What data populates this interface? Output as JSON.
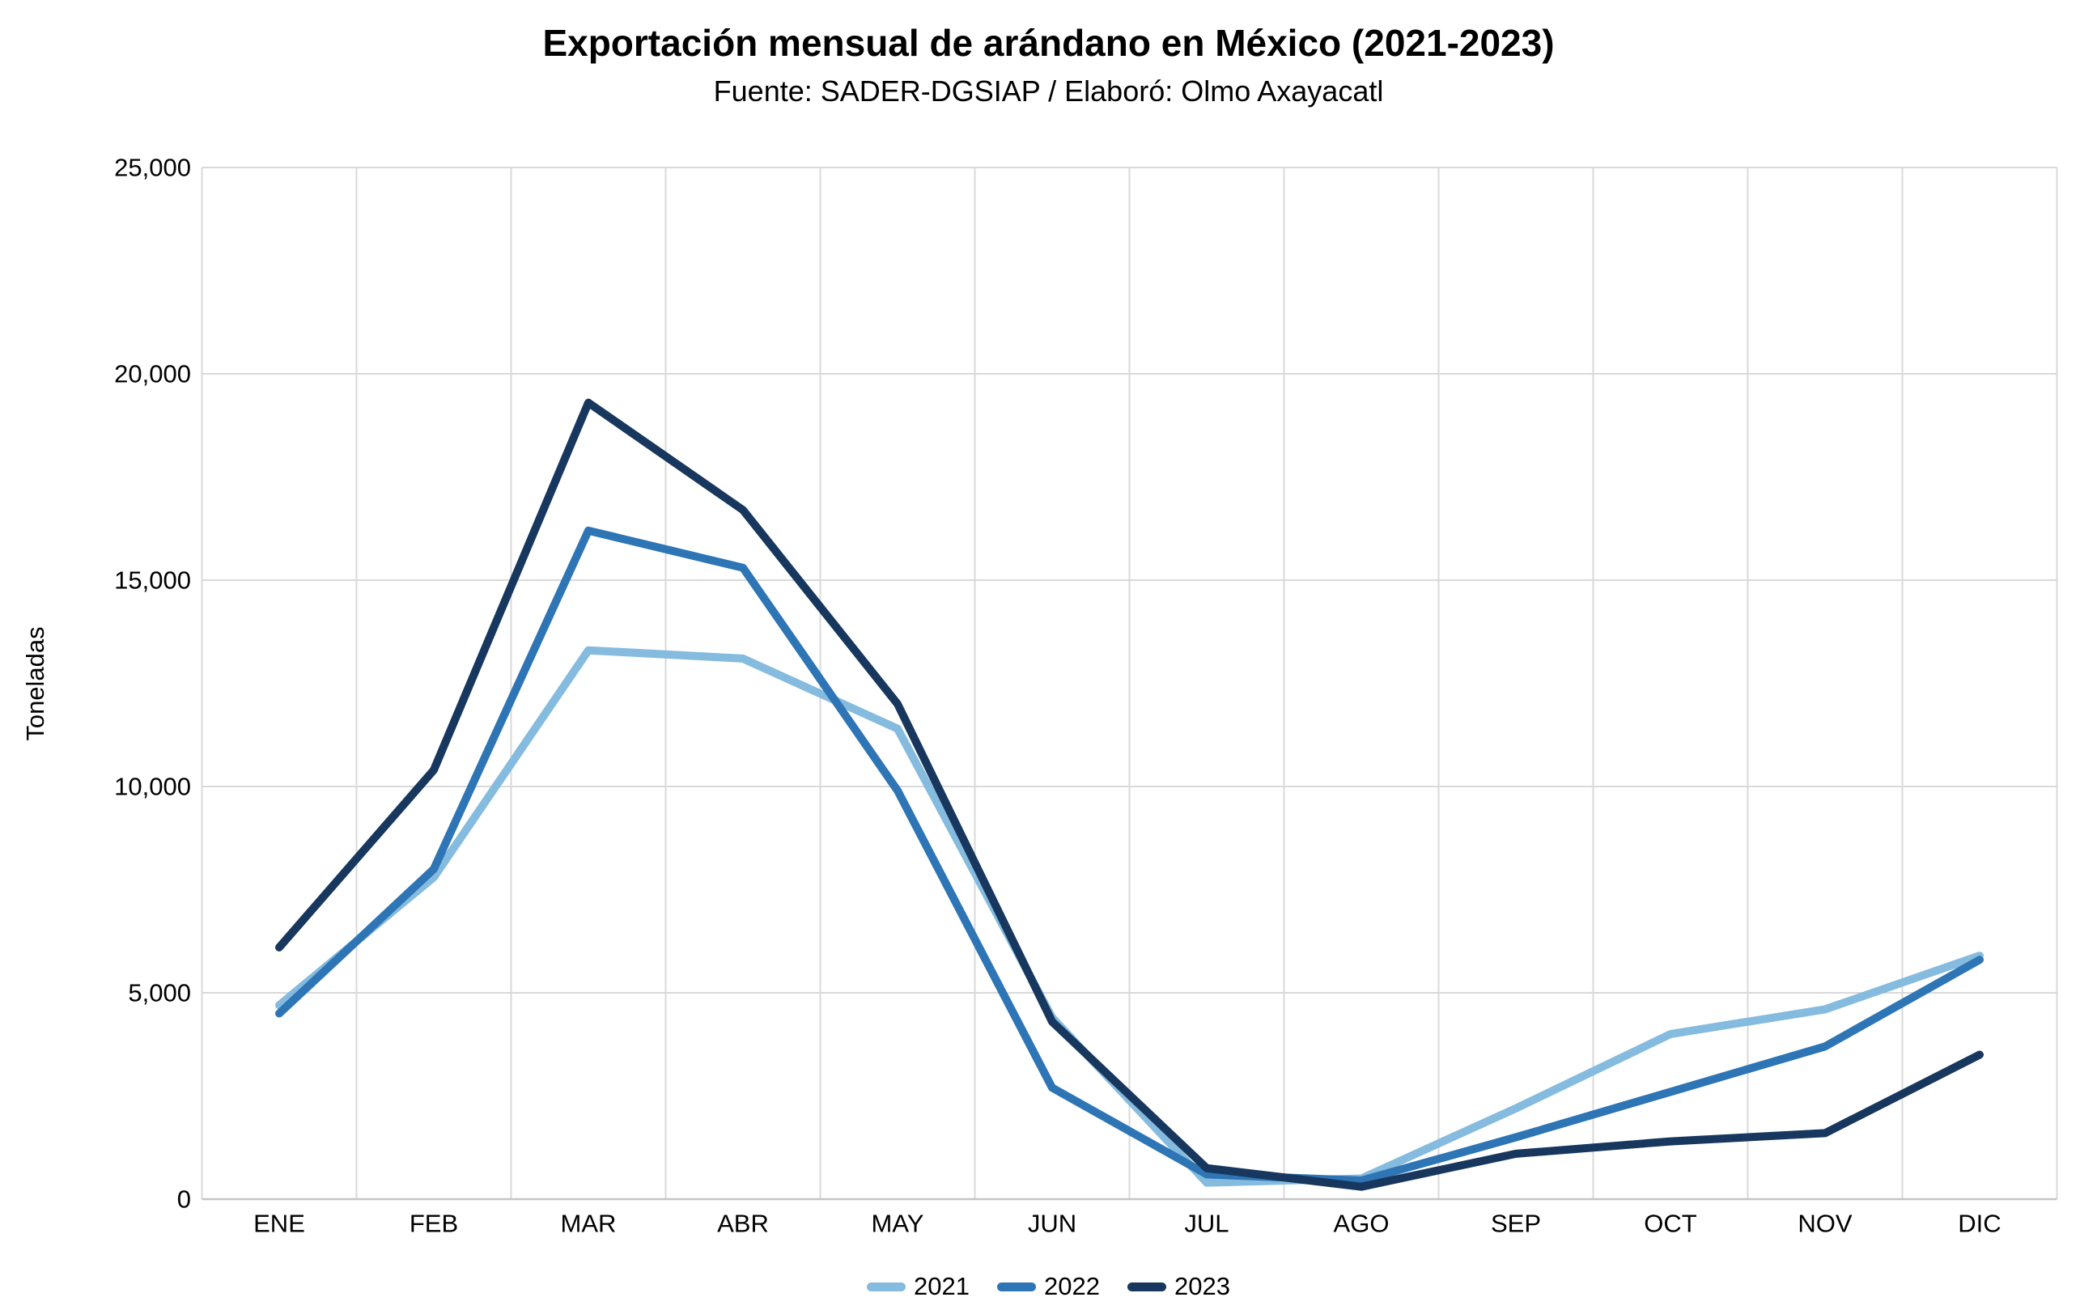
{
  "title": "Exportación mensual de arándano en México (2021-2023)",
  "subtitle": "Fuente: SADER-DGSIAP / Elaboró: Olmo Axayacatl",
  "chart_data": {
    "type": "line",
    "title": "Exportación mensual de arándano en México (2021-2023)",
    "subtitle": "Fuente: SADER-DGSIAP / Elaboró: Olmo Axayacatl",
    "xlabel": "",
    "ylabel": "Toneladas",
    "categories": [
      "ENE",
      "FEB",
      "MAR",
      "ABR",
      "MAY",
      "JUN",
      "JUL",
      "AGO",
      "SEP",
      "OCT",
      "NOV",
      "DIC"
    ],
    "series": [
      {
        "name": "2021",
        "color": "#84BBDE",
        "values": [
          4700,
          7800,
          13300,
          13100,
          11400,
          4400,
          400,
          500,
          2200,
          4000,
          4600,
          5900
        ]
      },
      {
        "name": "2022",
        "color": "#2E75B6",
        "values": [
          4500,
          8000,
          16200,
          15300,
          9900,
          2700,
          600,
          450,
          1500,
          2600,
          3700,
          5800
        ]
      },
      {
        "name": "2023",
        "color": "#17375E",
        "values": [
          6100,
          10400,
          19300,
          16700,
          12000,
          4300,
          750,
          300,
          1100,
          1400,
          1600,
          3500
        ]
      }
    ],
    "ylim": [
      0,
      25000
    ],
    "yticks": [
      0,
      5000,
      10000,
      15000,
      20000,
      25000
    ],
    "grid": {
      "horizontal": "major 5000",
      "vertical": "between months",
      "color": "#D9D9D9"
    },
    "axis_line_color": "#C6C6C6",
    "legend_position": "bottom",
    "units": "toneladas"
  },
  "colors": {
    "background": "#FFFFFF",
    "text": "#000000",
    "gridline": "#D9D9D9",
    "axis_line": "#C6C6C6",
    "series_2021": "#84BBDE",
    "series_2022": "#2E75B6",
    "series_2023": "#17375E"
  }
}
